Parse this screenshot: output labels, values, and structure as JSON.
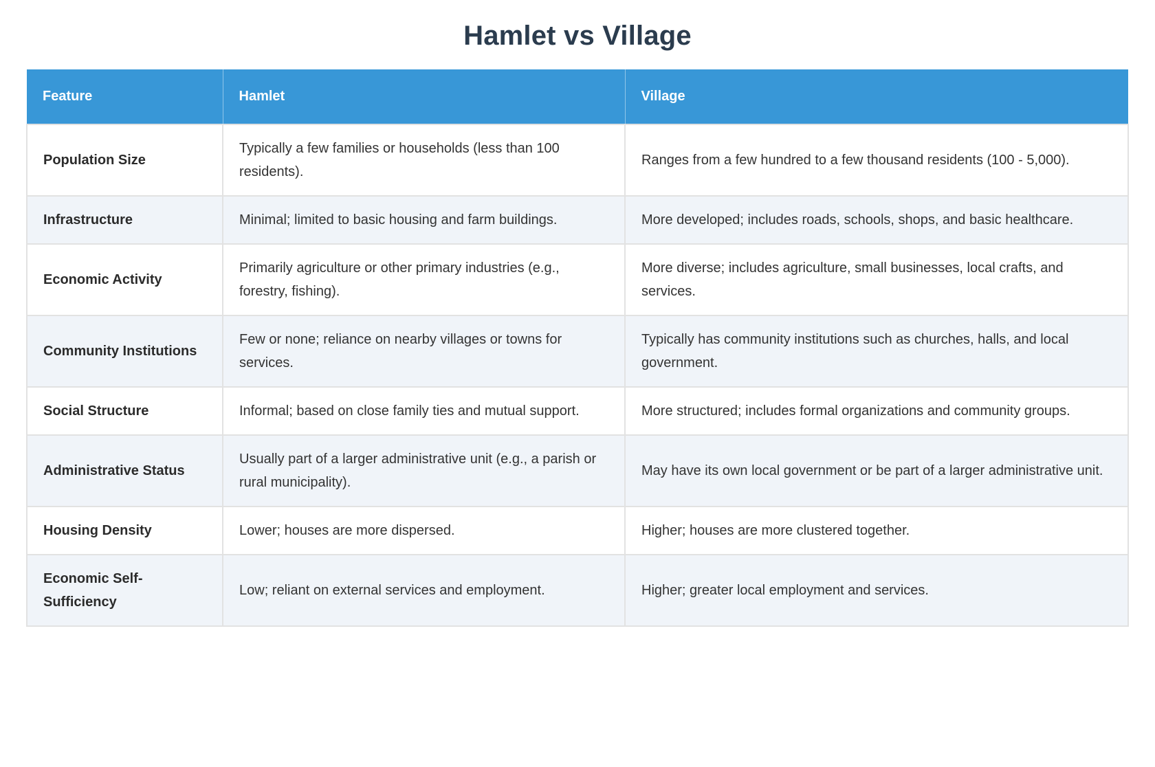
{
  "title": "Hamlet vs Village",
  "colors": {
    "header_bg": "#3897d7",
    "header_text": "#ffffff",
    "title_text": "#2b3c4e",
    "alt_row_bg": "#f0f4f9",
    "border": "#e2e2e2"
  },
  "table": {
    "columns": [
      "Feature",
      "Hamlet",
      "Village"
    ],
    "rows": [
      {
        "feature": "Population Size",
        "hamlet": "Typically a few families or households (less than 100 residents).",
        "village": "Ranges from a few hundred to a few thousand residents (100 - 5,000)."
      },
      {
        "feature": "Infrastructure",
        "hamlet": "Minimal; limited to basic housing and farm buildings.",
        "village": "More developed; includes roads, schools, shops, and basic healthcare."
      },
      {
        "feature": "Economic Activity",
        "hamlet": "Primarily agriculture or other primary industries (e.g., forestry, fishing).",
        "village": "More diverse; includes agriculture, small businesses, local crafts, and services."
      },
      {
        "feature": "Community Institutions",
        "hamlet": "Few or none; reliance on nearby villages or towns for services.",
        "village": "Typically has community institutions such as churches, halls, and local government."
      },
      {
        "feature": "Social Structure",
        "hamlet": "Informal; based on close family ties and mutual support.",
        "village": "More structured; includes formal organizations and community groups."
      },
      {
        "feature": "Administrative Status",
        "hamlet": "Usually part of a larger administrative unit (e.g., a parish or rural municipality).",
        "village": "May have its own local government or be part of a larger administrative unit."
      },
      {
        "feature": "Housing Density",
        "hamlet": "Lower; houses are more dispersed.",
        "village": "Higher; houses are more clustered together."
      },
      {
        "feature": "Economic Self-Sufficiency",
        "hamlet": "Low; reliant on external services and employment.",
        "village": "Higher; greater local employment and services."
      }
    ]
  }
}
